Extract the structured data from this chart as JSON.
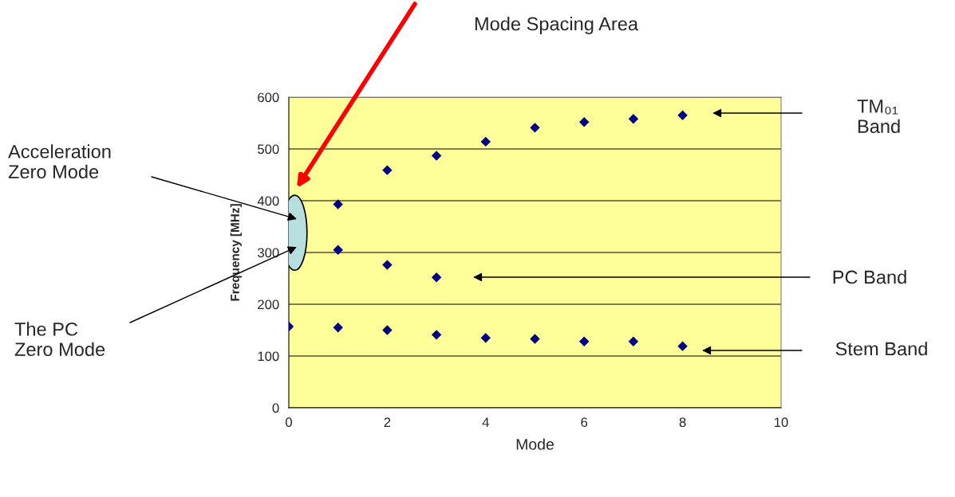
{
  "chart_data": {
    "type": "scatter",
    "xlabel": "Mode",
    "ylabel": "Frequency [MHz]",
    "series": [
      {
        "color": "#000080",
        "x": [
          1,
          2,
          3,
          4,
          5,
          6,
          7,
          8
        ],
        "values": [
          393,
          459,
          487,
          514,
          541,
          552,
          558,
          565
        ]
      },
      {
        "color": "#000080",
        "x": [
          1,
          2,
          3
        ],
        "values": [
          305,
          276,
          252
        ]
      },
      {
        "color": "#000080",
        "x": [
          0,
          1,
          2,
          3,
          4,
          5,
          6,
          7,
          8
        ],
        "values": [
          157,
          155,
          150,
          141,
          135,
          133,
          128,
          128,
          119
        ]
      }
    ],
    "xlim": [
      0,
      10
    ],
    "xticks": [
      0,
      2,
      4,
      6,
      8,
      10
    ],
    "ylim": [
      0,
      600
    ],
    "yticks": [
      0,
      100,
      200,
      300,
      400,
      500,
      600
    ],
    "grid": "y",
    "marker": "diamond",
    "annotations": [
      "Mode Spacing Area",
      "Acceleration\nZero Mode",
      "The PC\nZero Mode",
      "TM₀₁\nBand",
      "PC Band",
      "Stem Band"
    ]
  }
}
